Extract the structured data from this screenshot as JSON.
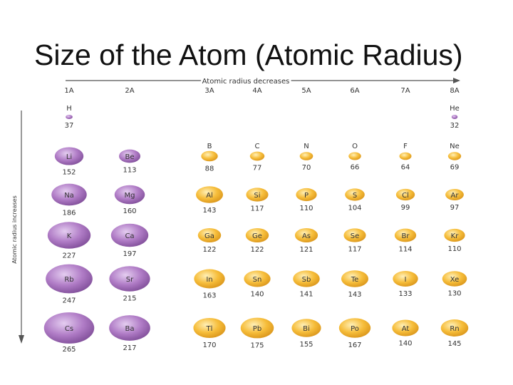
{
  "slide": {
    "title": "Size of the Atom (Atomic Radius)"
  },
  "diagram": {
    "top_arrow_label": "Atomic radius decreases",
    "side_arrow_label": "Atomic radius increases",
    "colors": {
      "s_block": "#b07cc6",
      "p_block": "#f6bd3a",
      "he": "#b07cc6"
    },
    "groups": [
      {
        "label": "1A",
        "elements": [
          {
            "symbol": "H",
            "radius": 37,
            "block": "s"
          },
          {
            "symbol": "Li",
            "radius": 152,
            "block": "s"
          },
          {
            "symbol": "Na",
            "radius": 186,
            "block": "s"
          },
          {
            "symbol": "K",
            "radius": 227,
            "block": "s"
          },
          {
            "symbol": "Rb",
            "radius": 247,
            "block": "s"
          },
          {
            "symbol": "Cs",
            "radius": 265,
            "block": "s"
          }
        ]
      },
      {
        "label": "2A",
        "elements": [
          null,
          {
            "symbol": "Be",
            "radius": 113,
            "block": "s"
          },
          {
            "symbol": "Mg",
            "radius": 160,
            "block": "s"
          },
          {
            "symbol": "Ca",
            "radius": 197,
            "block": "s"
          },
          {
            "symbol": "Sr",
            "radius": 215,
            "block": "s"
          },
          {
            "symbol": "Ba",
            "radius": 217,
            "block": "s"
          }
        ]
      },
      {
        "label": "3A",
        "elements": [
          null,
          {
            "symbol": "B",
            "radius": 88,
            "block": "p"
          },
          {
            "symbol": "Al",
            "radius": 143,
            "block": "p"
          },
          {
            "symbol": "Ga",
            "radius": 122,
            "block": "p"
          },
          {
            "symbol": "In",
            "radius": 163,
            "block": "p"
          },
          {
            "symbol": "Tl",
            "radius": 170,
            "block": "p"
          }
        ]
      },
      {
        "label": "4A",
        "elements": [
          null,
          {
            "symbol": "C",
            "radius": 77,
            "block": "p"
          },
          {
            "symbol": "Si",
            "radius": 117,
            "block": "p"
          },
          {
            "symbol": "Ge",
            "radius": 122,
            "block": "p"
          },
          {
            "symbol": "Sn",
            "radius": 140,
            "block": "p"
          },
          {
            "symbol": "Pb",
            "radius": 175,
            "block": "p"
          }
        ]
      },
      {
        "label": "5A",
        "elements": [
          null,
          {
            "symbol": "N",
            "radius": 70,
            "block": "p"
          },
          {
            "symbol": "P",
            "radius": 110,
            "block": "p"
          },
          {
            "symbol": "As",
            "radius": 121,
            "block": "p"
          },
          {
            "symbol": "Sb",
            "radius": 141,
            "block": "p"
          },
          {
            "symbol": "Bi",
            "radius": 155,
            "block": "p"
          }
        ]
      },
      {
        "label": "6A",
        "elements": [
          null,
          {
            "symbol": "O",
            "radius": 66,
            "block": "p"
          },
          {
            "symbol": "S",
            "radius": 104,
            "block": "p"
          },
          {
            "symbol": "Se",
            "radius": 117,
            "block": "p"
          },
          {
            "symbol": "Te",
            "radius": 143,
            "block": "p"
          },
          {
            "symbol": "Po",
            "radius": 167,
            "block": "p"
          }
        ]
      },
      {
        "label": "7A",
        "elements": [
          null,
          {
            "symbol": "F",
            "radius": 64,
            "block": "p"
          },
          {
            "symbol": "Cl",
            "radius": 99,
            "block": "p"
          },
          {
            "symbol": "Br",
            "radius": 114,
            "block": "p"
          },
          {
            "symbol": "I",
            "radius": 133,
            "block": "p"
          },
          {
            "symbol": "At",
            "radius": 140,
            "block": "p"
          }
        ]
      },
      {
        "label": "8A",
        "elements": [
          {
            "symbol": "He",
            "radius": 32,
            "block": "he"
          },
          {
            "symbol": "Ne",
            "radius": 69,
            "block": "p"
          },
          {
            "symbol": "Ar",
            "radius": 97,
            "block": "p"
          },
          {
            "symbol": "Kr",
            "radius": 110,
            "block": "p"
          },
          {
            "symbol": "Xe",
            "radius": 130,
            "block": "p"
          },
          {
            "symbol": "Rn",
            "radius": 145,
            "block": "p"
          }
        ]
      }
    ]
  }
}
